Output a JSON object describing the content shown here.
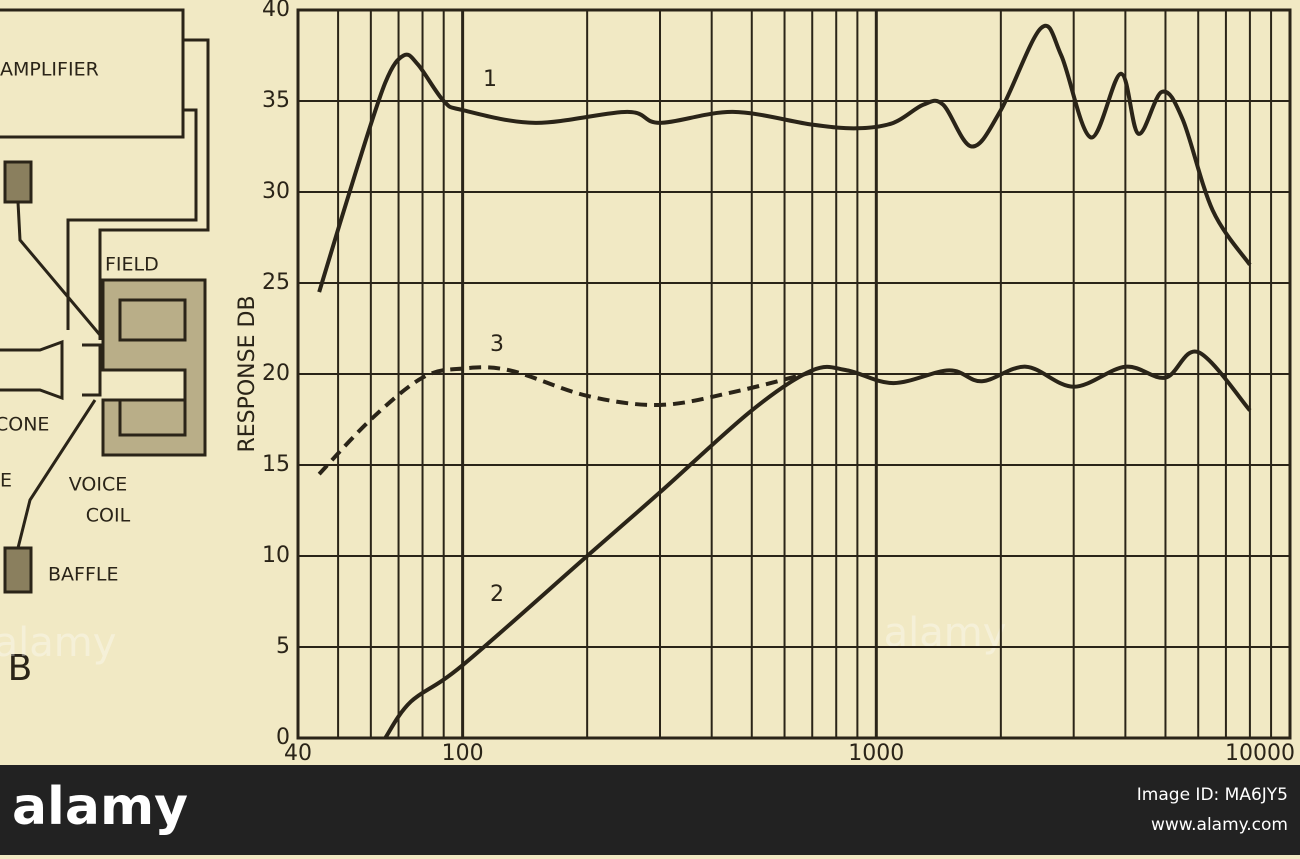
{
  "chart_data": {
    "type": "line",
    "y_label": "RESPONSE DB",
    "xlim": [
      40,
      10000
    ],
    "xticks": [
      40,
      100,
      1000,
      10000
    ],
    "x_log": true,
    "x_minor_grid": [
      50,
      60,
      70,
      80,
      90,
      200,
      300,
      400,
      500,
      600,
      700,
      800,
      900,
      2000,
      3000,
      4000,
      5000,
      6000,
      7000,
      8000,
      9000
    ],
    "ylim": [
      0,
      40
    ],
    "yticks": [
      0,
      5,
      10,
      15,
      20,
      25,
      30,
      35,
      40
    ],
    "grid": true,
    "series": [
      {
        "name": "1",
        "color": "#2a2418",
        "dashed": false,
        "x": [
          45,
          55,
          65,
          72,
          78,
          90,
          100,
          150,
          250,
          300,
          450,
          700,
          900,
          1100,
          1300,
          1450,
          1700,
          2000,
          2500,
          2800,
          3300,
          3900,
          4300,
          4900,
          5500,
          6500,
          8000
        ],
        "values": [
          24.5,
          31,
          36,
          37.5,
          37,
          35,
          34.5,
          33.8,
          34.4,
          33.8,
          34.4,
          33.7,
          33.5,
          33.8,
          34.8,
          34.8,
          32.5,
          34.5,
          39,
          37.5,
          33,
          36.5,
          33.2,
          35.5,
          34,
          29,
          26
        ]
      },
      {
        "name": "2",
        "color": "#2a2418",
        "dashed": false,
        "x": [
          65,
          75,
          100,
          200,
          300,
          500,
          700,
          850,
          1100,
          1500,
          1800,
          2300,
          3000,
          4000,
          5000,
          6000,
          8000
        ],
        "values": [
          0,
          2,
          4,
          10,
          13.5,
          18,
          20.2,
          20.2,
          19.5,
          20.2,
          19.6,
          20.4,
          19.3,
          20.4,
          19.8,
          21.2,
          18
        ]
      },
      {
        "name": "3",
        "color": "#2a2418",
        "dashed": true,
        "x": [
          45,
          60,
          80,
          100,
          130,
          200,
          300,
          450,
          700
        ],
        "values": [
          14.5,
          17.5,
          19.8,
          20.3,
          20.2,
          18.8,
          18.3,
          19,
          20.1
        ]
      }
    ]
  },
  "diagram": {
    "amplifier": "AMPLIFIER",
    "field": "FIELD",
    "cone": "CONE",
    "cut_label": "E",
    "voice_coil_1": "VOICE",
    "voice_coil_2": "COIL",
    "baffle": "BAFFLE",
    "panel": "B"
  },
  "watermark": "alamy",
  "footer": {
    "logo": "alamy",
    "image_id": "Image ID: MA6JY5",
    "url": "www.alamy.com"
  }
}
